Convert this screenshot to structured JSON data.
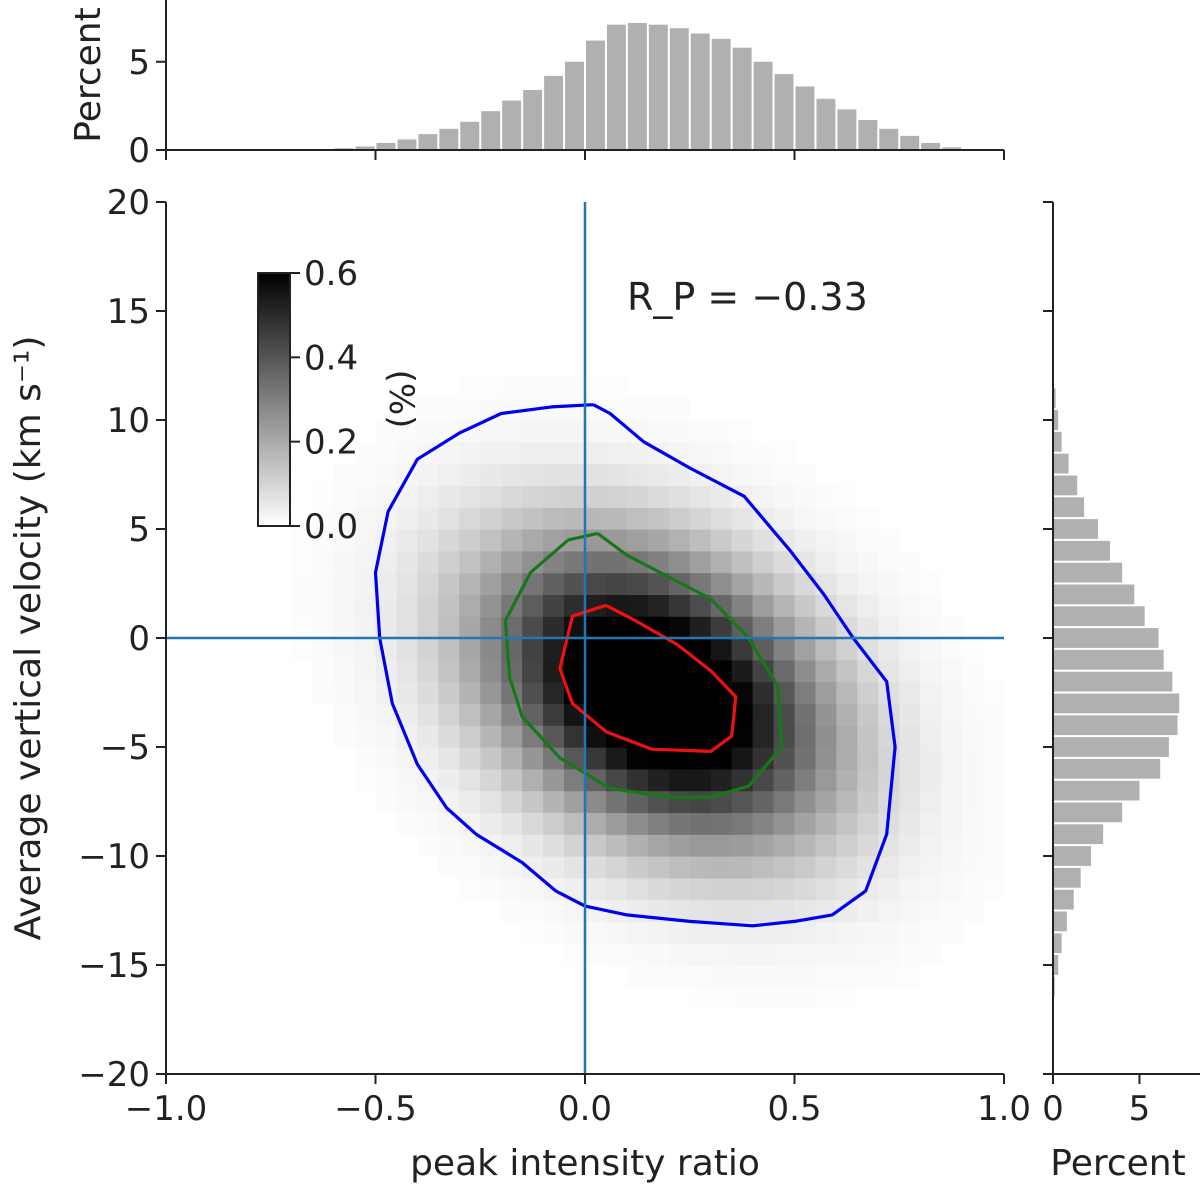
{
  "chart_data": [
    {
      "type": "heatmap",
      "id": "joint",
      "xlabel": "peak intensity ratio",
      "ylabel": "Average vertical velocity (km s⁻¹)",
      "xlim": [
        -1.0,
        1.0
      ],
      "ylim": [
        -20,
        20
      ],
      "xticks": [
        -1.0,
        -0.5,
        0.0,
        0.5,
        1.0
      ],
      "xtick_labels": [
        "−1.0",
        "−0.5",
        "0.0",
        "0.5",
        "1.0"
      ],
      "yticks": [
        -20,
        -15,
        -10,
        -5,
        0,
        5,
        10,
        15,
        20
      ],
      "ytick_labels": [
        "−20",
        "−15",
        "−10",
        "−5",
        "0",
        "5",
        "10",
        "15",
        "20"
      ],
      "annotation": "R_P = −0.33",
      "heatmap_model": {
        "center": [
          0.17,
          -2.5
        ],
        "sigma_x": 0.27,
        "sigma_y": 4.5,
        "correlation": -0.33,
        "peak_percent": 0.6,
        "bin_width_x": 0.05,
        "bin_width_y": 1.0
      },
      "reference_lines": {
        "x": 0.0,
        "y": 0.0,
        "color": "#1f77b4"
      },
      "colorbar": {
        "label": "(%)",
        "min": 0.0,
        "max": 0.6,
        "ticks": [
          "0.0",
          "0.2",
          "0.4",
          "0.6"
        ]
      },
      "contours": [
        {
          "color": "#0000ee",
          "points": [
            [
              0.02,
              10.7
            ],
            [
              -0.08,
              10.6
            ],
            [
              -0.2,
              10.3
            ],
            [
              -0.3,
              9.4
            ],
            [
              -0.4,
              8.2
            ],
            [
              -0.47,
              5.8
            ],
            [
              -0.5,
              3.0
            ],
            [
              -0.49,
              0.0
            ],
            [
              -0.46,
              -3.0
            ],
            [
              -0.4,
              -5.8
            ],
            [
              -0.33,
              -7.8
            ],
            [
              -0.26,
              -9.0
            ],
            [
              -0.15,
              -10.3
            ],
            [
              -0.07,
              -11.6
            ],
            [
              0.0,
              -12.3
            ],
            [
              0.1,
              -12.7
            ],
            [
              0.25,
              -13.0
            ],
            [
              0.4,
              -13.2
            ],
            [
              0.5,
              -13.0
            ],
            [
              0.59,
              -12.7
            ],
            [
              0.67,
              -11.6
            ],
            [
              0.72,
              -9.0
            ],
            [
              0.74,
              -5.0
            ],
            [
              0.72,
              -2.0
            ],
            [
              0.64,
              0.0
            ],
            [
              0.57,
              2.0
            ],
            [
              0.49,
              4.0
            ],
            [
              0.38,
              6.5
            ],
            [
              0.25,
              7.8
            ],
            [
              0.14,
              9.0
            ],
            [
              0.06,
              10.3
            ],
            [
              0.02,
              10.7
            ]
          ]
        },
        {
          "color": "#187818",
          "points": [
            [
              0.03,
              4.8
            ],
            [
              -0.04,
              4.5
            ],
            [
              -0.13,
              3.0
            ],
            [
              -0.19,
              0.8
            ],
            [
              -0.18,
              -1.8
            ],
            [
              -0.15,
              -3.6
            ],
            [
              -0.06,
              -5.5
            ],
            [
              0.06,
              -6.9
            ],
            [
              0.2,
              -7.3
            ],
            [
              0.3,
              -7.3
            ],
            [
              0.39,
              -6.8
            ],
            [
              0.47,
              -5.0
            ],
            [
              0.46,
              -2.2
            ],
            [
              0.39,
              0.0
            ],
            [
              0.3,
              1.8
            ],
            [
              0.2,
              2.8
            ],
            [
              0.1,
              3.8
            ],
            [
              0.03,
              4.8
            ]
          ]
        },
        {
          "color": "#ee1111",
          "points": [
            [
              0.05,
              1.5
            ],
            [
              -0.03,
              1.0
            ],
            [
              -0.06,
              -1.4
            ],
            [
              -0.03,
              -3.0
            ],
            [
              0.05,
              -4.3
            ],
            [
              0.16,
              -5.1
            ],
            [
              0.3,
              -5.2
            ],
            [
              0.35,
              -4.5
            ],
            [
              0.36,
              -2.7
            ],
            [
              0.3,
              -1.5
            ],
            [
              0.22,
              -0.3
            ],
            [
              0.12,
              0.8
            ],
            [
              0.05,
              1.5
            ]
          ]
        }
      ]
    },
    {
      "type": "bar",
      "id": "top_marginal",
      "ylabel": "Percent",
      "yticks": [
        0,
        5
      ],
      "xlim": [
        -1.0,
        1.0
      ],
      "ylim": [
        0,
        8.5
      ],
      "bin_start": -0.6,
      "bin_width": 0.05,
      "values": [
        0.1,
        0.2,
        0.4,
        0.6,
        0.9,
        1.2,
        1.6,
        2.2,
        2.8,
        3.4,
        4.2,
        5.0,
        6.2,
        7.1,
        7.2,
        7.1,
        6.9,
        6.6,
        6.3,
        5.8,
        5.0,
        4.3,
        3.6,
        2.9,
        2.3,
        1.7,
        1.2,
        0.8,
        0.4,
        0.15
      ]
    },
    {
      "type": "bar",
      "orientation": "horizontal",
      "id": "right_marginal",
      "xlabel": "Percent",
      "xticks": [
        0,
        5
      ],
      "xtick_labels": [
        "0",
        "5"
      ],
      "xlim": [
        0,
        8.5
      ],
      "ylim": [
        -20,
        20
      ],
      "bin_start": -16.5,
      "bin_width": 1.0,
      "values": [
        0.1,
        0.3,
        0.5,
        0.8,
        1.2,
        1.6,
        2.2,
        2.9,
        4.0,
        5.0,
        6.2,
        6.7,
        7.2,
        7.3,
        6.9,
        6.4,
        6.1,
        5.3,
        4.7,
        4.0,
        3.3,
        2.6,
        1.8,
        1.4,
        0.9,
        0.5,
        0.3,
        0.15,
        0.05
      ]
    }
  ]
}
